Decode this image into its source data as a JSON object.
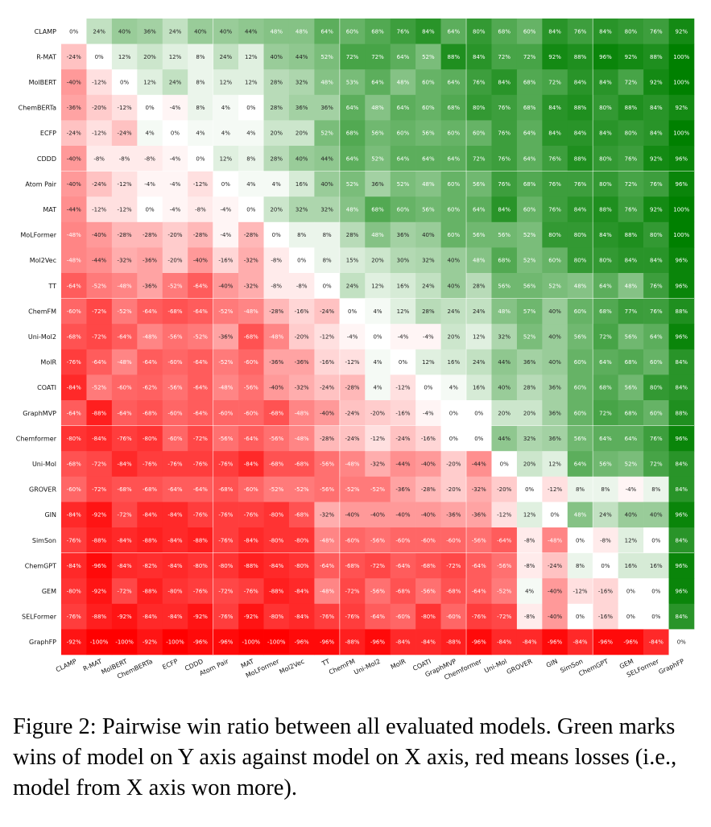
{
  "chart_data": {
    "type": "heatmap",
    "labels": [
      "CLAMP",
      "R-MAT",
      "MolBERT",
      "ChemBERTa",
      "ECFP",
      "CDDD",
      "Atom Pair",
      "MAT",
      "MoLFormer",
      "Mol2Vec",
      "TT",
      "ChemFM",
      "Uni-Mol2",
      "MolR",
      "COATI",
      "GraphMVP",
      "Chemformer",
      "Uni-Mol",
      "GROVER",
      "GIN",
      "SimSon",
      "ChemGPT",
      "GEM",
      "SELFormer",
      "GraphFP"
    ],
    "values": [
      [
        0,
        24,
        40,
        36,
        24,
        40,
        40,
        44,
        48,
        48,
        64,
        60,
        68,
        76,
        84,
        64,
        80,
        68,
        60,
        84,
        76,
        84,
        80,
        76,
        92
      ],
      [
        -24,
        0,
        12,
        20,
        12,
        8,
        24,
        12,
        40,
        44,
        52,
        72,
        72,
        64,
        52,
        88,
        84,
        72,
        72,
        92,
        88,
        96,
        92,
        88,
        100
      ],
      [
        -40,
        -12,
        0,
        12,
        24,
        8,
        12,
        12,
        28,
        32,
        48,
        53,
        64,
        48,
        60,
        64,
        76,
        84,
        68,
        72,
        84,
        84,
        72,
        92,
        100
      ],
      [
        -36,
        -20,
        -12,
        0,
        -4,
        8,
        4,
        0,
        28,
        36,
        36,
        64,
        48,
        64,
        60,
        68,
        80,
        76,
        68,
        84,
        88,
        80,
        88,
        84,
        92
      ],
      [
        -24,
        -12,
        -24,
        4,
        0,
        4,
        4,
        4,
        20,
        20,
        52,
        68,
        56,
        60,
        56,
        60,
        60,
        76,
        64,
        84,
        84,
        84,
        80,
        84,
        100
      ],
      [
        -40,
        -8,
        -8,
        -8,
        -4,
        0,
        12,
        8,
        28,
        40,
        44,
        64,
        52,
        64,
        64,
        64,
        72,
        76,
        64,
        76,
        88,
        80,
        76,
        92,
        96
      ],
      [
        -40,
        -24,
        -12,
        -4,
        -4,
        -12,
        0,
        4,
        4,
        16,
        40,
        52,
        36,
        52,
        48,
        60,
        56,
        76,
        68,
        76,
        76,
        80,
        72,
        76,
        96
      ],
      [
        -44,
        -12,
        -12,
        0,
        -4,
        -8,
        -4,
        0,
        20,
        32,
        32,
        48,
        68,
        60,
        56,
        60,
        64,
        84,
        60,
        76,
        84,
        88,
        76,
        92,
        100
      ],
      [
        -48,
        -40,
        -28,
        -28,
        -20,
        -28,
        -4,
        -28,
        0,
        8,
        8,
        28,
        48,
        36,
        40,
        60,
        56,
        56,
        52,
        80,
        80,
        84,
        88,
        80,
        100
      ],
      [
        -48,
        -44,
        -32,
        -36,
        -20,
        -40,
        -16,
        -32,
        -8,
        0,
        8,
        15,
        20,
        30,
        32,
        40,
        48,
        68,
        52,
        60,
        80,
        80,
        84,
        84,
        96
      ],
      [
        -64,
        -52,
        -48,
        -36,
        -52,
        -64,
        -40,
        -32,
        -8,
        -8,
        0,
        24,
        12,
        16,
        24,
        40,
        28,
        56,
        56,
        52,
        48,
        64,
        48,
        76,
        96
      ],
      [
        -60,
        -72,
        -52,
        -64,
        -68,
        -64,
        -52,
        -48,
        -28,
        -16,
        -24,
        0,
        4,
        12,
        28,
        24,
        24,
        48,
        57,
        40,
        60,
        68,
        77,
        76,
        88
      ],
      [
        -68,
        -72,
        -64,
        -48,
        -56,
        -52,
        -36,
        -68,
        -48,
        -20,
        -12,
        -4,
        0,
        -4,
        -4,
        20,
        12,
        32,
        52,
        40,
        56,
        72,
        56,
        64,
        96
      ],
      [
        -76,
        -64,
        -48,
        -64,
        -60,
        -64,
        -52,
        -60,
        -36,
        -36,
        -16,
        -12,
        4,
        0,
        12,
        16,
        24,
        44,
        36,
        40,
        60,
        64,
        68,
        60,
        84
      ],
      [
        -84,
        -52,
        -60,
        -62,
        -56,
        -64,
        -48,
        -56,
        -40,
        -32,
        -24,
        -28,
        4,
        -12,
        0,
        4,
        16,
        40,
        28,
        36,
        60,
        68,
        56,
        80,
        84
      ],
      [
        -64,
        -88,
        -64,
        -68,
        -60,
        -64,
        -60,
        -60,
        -68,
        -48,
        -40,
        -24,
        -20,
        -16,
        -4,
        0,
        0,
        20,
        20,
        36,
        60,
        72,
        68,
        60,
        88
      ],
      [
        -80,
        -84,
        -76,
        -80,
        -60,
        -72,
        -56,
        -64,
        -56,
        -48,
        -28,
        -24,
        -12,
        -24,
        -16,
        0,
        0,
        44,
        32,
        36,
        56,
        64,
        64,
        76,
        96
      ],
      [
        -68,
        -72,
        -84,
        -76,
        -76,
        -76,
        -76,
        -84,
        -68,
        -68,
        -56,
        -48,
        -32,
        -44,
        -40,
        -20,
        -44,
        0,
        20,
        12,
        64,
        56,
        52,
        72,
        84
      ],
      [
        -60,
        -72,
        -68,
        -68,
        -64,
        -64,
        -68,
        -60,
        -52,
        -52,
        -56,
        -52,
        -52,
        -36,
        -28,
        -20,
        -32,
        -20,
        0,
        -12,
        8,
        8,
        -4,
        8,
        84
      ],
      [
        -84,
        -92,
        -72,
        -84,
        -84,
        -76,
        -76,
        -76,
        -80,
        -68,
        -32,
        -40,
        -40,
        -40,
        -40,
        -36,
        -36,
        -12,
        12,
        0,
        48,
        24,
        40,
        40,
        96
      ],
      [
        -76,
        -88,
        -84,
        -88,
        -84,
        -88,
        -76,
        -84,
        -80,
        -80,
        -48,
        -60,
        -56,
        -60,
        -60,
        -60,
        -56,
        -64,
        -8,
        -48,
        0,
        -8,
        12,
        0,
        84
      ],
      [
        -84,
        -96,
        -84,
        -82,
        -84,
        -80,
        -80,
        -88,
        -84,
        -80,
        -64,
        -68,
        -72,
        -64,
        -68,
        -72,
        -64,
        -56,
        -8,
        -24,
        8,
        0,
        16,
        16,
        96
      ],
      [
        -80,
        -92,
        -72,
        -88,
        -80,
        -76,
        -72,
        -76,
        -88,
        -84,
        -48,
        -72,
        -56,
        -68,
        -56,
        -68,
        -64,
        -52,
        4,
        -40,
        -12,
        -16,
        0,
        0,
        96
      ],
      [
        -76,
        -88,
        -92,
        -84,
        -84,
        -92,
        -76,
        -92,
        -80,
        -84,
        -76,
        -76,
        -64,
        -60,
        -80,
        -60,
        -76,
        -72,
        -8,
        -40,
        0,
        -16,
        0,
        0,
        84
      ],
      [
        -92,
        -100,
        -100,
        -92,
        -100,
        -96,
        -96,
        -100,
        -100,
        -96,
        -96,
        -88,
        -96,
        -84,
        -84,
        -88,
        -96,
        -84,
        -84,
        -96,
        -84,
        -96,
        -96,
        -84,
        0
      ]
    ],
    "value_suffix": "%",
    "color_scale": {
      "negative": "#ff0000",
      "zero": "#ffffff",
      "positive": "#008000",
      "min": -100,
      "max": 100
    },
    "grid_separators_after_index": [
      5,
      10,
      15,
      20
    ]
  },
  "caption": {
    "text": "Figure 2: Pairwise win ratio between all evaluated models. Green marks wins of model on Y axis against model on X axis, red means losses (i.e., model from X axis won more)."
  }
}
